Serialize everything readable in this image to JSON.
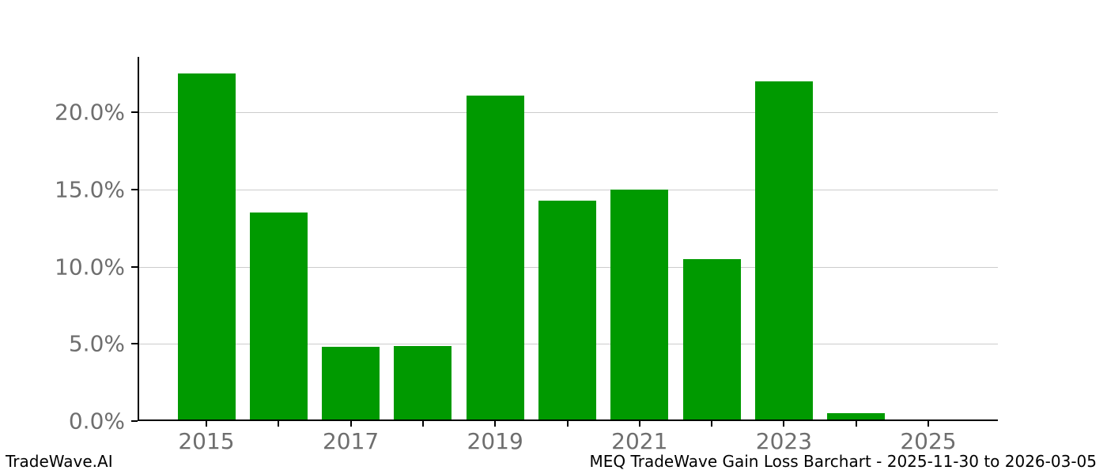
{
  "chart_data": {
    "type": "bar",
    "title": "MEQ TradeWave Gain Loss Barchart - 2025-11-30 to 2026-03-05",
    "categories": [
      "2015",
      "2016",
      "2017",
      "2018",
      "2019",
      "2020",
      "2021",
      "2022",
      "2023",
      "2024",
      "2025"
    ],
    "values": [
      22.5,
      13.5,
      4.8,
      4.85,
      21.1,
      14.3,
      15.0,
      10.5,
      22.0,
      0.5,
      0.0
    ],
    "xlabel": "",
    "ylabel": "",
    "x_tick_labels": [
      "2015",
      "2017",
      "2019",
      "2021",
      "2023",
      "2025"
    ],
    "y_tick_labels": [
      "0.0%",
      "5.0%",
      "10.0%",
      "15.0%",
      "20.0%"
    ],
    "y_tick_values": [
      0,
      5,
      10,
      15,
      20
    ],
    "ylim": [
      0,
      23.6
    ],
    "grid": "horizontal",
    "legend": "none",
    "bar_color": "#009a00",
    "grid_color": "#cccccc",
    "tick_label_color": "#6e6e6e",
    "axis_color": "#000000"
  },
  "footer": {
    "left": "TradeWave.AI",
    "right": "MEQ TradeWave Gain Loss Barchart - 2025-11-30 to 2026-03-05"
  }
}
